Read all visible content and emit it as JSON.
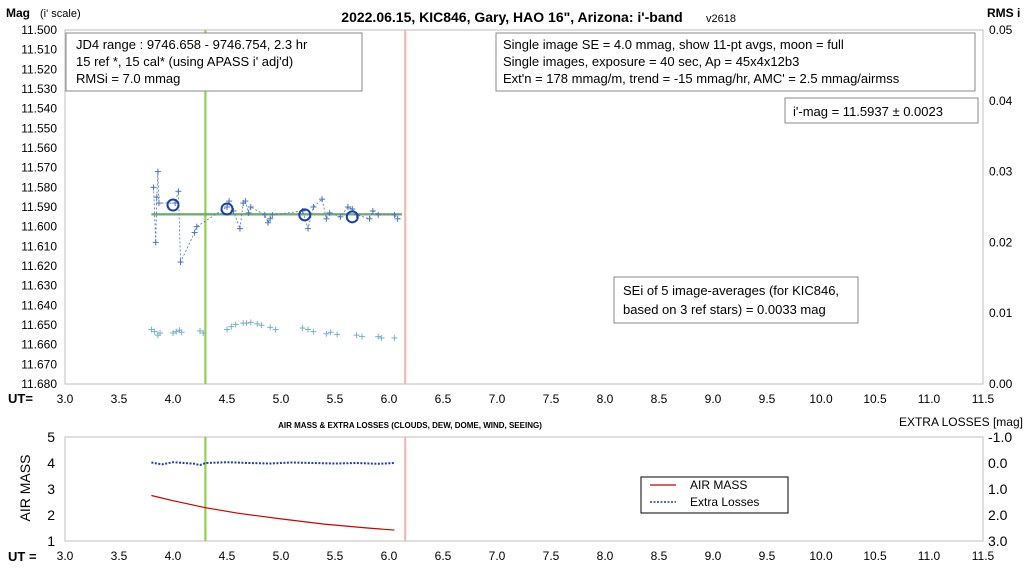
{
  "chart_data": [
    {
      "type": "scatter",
      "title": "2022.06.15, KIC846, Gary, HAO 16\", Arizona: i'-band",
      "version": "v2618",
      "ylabel_left": "Mag",
      "ylabel_left_sub": "(i' scale)",
      "ylabel_right": "RMS i",
      "xlabel": "UT=",
      "xlim": [
        3.0,
        11.5
      ],
      "xticks": [
        "3.0",
        "3.5",
        "4.0",
        "4.5",
        "5.0",
        "5.5",
        "6.0",
        "6.5",
        "7.0",
        "7.5",
        "8.0",
        "8.5",
        "9.0",
        "9.5",
        "10.0",
        "10.5",
        "11.0",
        "11.5"
      ],
      "ylim": [
        11.5,
        11.68
      ],
      "yticks": [
        "11.500",
        "11.510",
        "11.520",
        "11.530",
        "11.540",
        "11.550",
        "11.560",
        "11.570",
        "11.580",
        "11.590",
        "11.600",
        "11.610",
        "11.620",
        "11.630",
        "11.640",
        "11.650",
        "11.660",
        "11.670",
        "11.680"
      ],
      "y2lim": [
        0.0,
        0.05
      ],
      "y2ticks": [
        "0.05",
        "0.04",
        "0.03",
        "0.02",
        "0.01",
        "0.00"
      ],
      "vlines": [
        {
          "x": 4.3,
          "color": "#92d050"
        },
        {
          "x": 6.15,
          "color": "#f4b8b8"
        }
      ],
      "fit_line": {
        "x": [
          3.8,
          6.12
        ],
        "y": 11.5937,
        "color": "#70ad70"
      },
      "series": [
        {
          "marker": "plus",
          "color": "#4a76b8",
          "dashed": true,
          "x": [
            3.82,
            3.84,
            3.85,
            3.86,
            3.87,
            4.02,
            4.05,
            4.07,
            4.2,
            4.22,
            4.5,
            4.52,
            4.56,
            4.62,
            4.65,
            4.67,
            4.7,
            4.72,
            4.85,
            4.88,
            4.9,
            4.92,
            5.2,
            5.25,
            5.3,
            5.38,
            5.42,
            5.45,
            5.55,
            5.62,
            5.66,
            5.7,
            5.82,
            5.85,
            5.9,
            6.05,
            6.08
          ],
          "y": [
            11.58,
            11.608,
            11.585,
            11.572,
            11.588,
            11.588,
            11.582,
            11.618,
            11.603,
            11.6,
            11.59,
            11.587,
            11.592,
            11.601,
            11.588,
            11.587,
            11.593,
            11.59,
            11.594,
            11.598,
            11.596,
            11.594,
            11.592,
            11.601,
            11.59,
            11.586,
            11.596,
            11.593,
            11.595,
            11.59,
            11.591,
            11.594,
            11.596,
            11.592,
            11.594,
            11.594,
            11.596
          ]
        },
        {
          "marker": "circle",
          "color": "#1f3fa8",
          "x": [
            4.0,
            4.5,
            5.22,
            5.66
          ],
          "y": [
            11.589,
            11.591,
            11.594,
            11.595
          ]
        },
        {
          "marker": "plus",
          "color": "#7ab0c8",
          "axis": "right",
          "x": [
            3.8,
            3.83,
            3.86,
            3.88,
            4.0,
            4.03,
            4.06,
            4.08,
            4.25,
            4.28,
            4.5,
            4.54,
            4.58,
            4.65,
            4.68,
            4.72,
            4.78,
            4.82,
            4.9,
            4.95,
            5.2,
            5.25,
            5.3,
            5.42,
            5.46,
            5.52,
            5.7,
            5.75,
            5.9,
            5.93,
            6.05
          ],
          "y": [
            0.0077,
            0.0074,
            0.0069,
            0.0072,
            0.0072,
            0.0074,
            0.0076,
            0.0073,
            0.0075,
            0.0072,
            0.0077,
            0.0081,
            0.0084,
            0.0086,
            0.0086,
            0.0087,
            0.0085,
            0.0083,
            0.008,
            0.0077,
            0.0079,
            0.0077,
            0.0074,
            0.0071,
            0.0073,
            0.007,
            0.0069,
            0.0067,
            0.0067,
            0.0065,
            0.0065
          ]
        }
      ],
      "annotations": {
        "box1": [
          "JD4 range : 9746.658 - 9746.754, 2.3  hr",
          "15 ref *, 15 cal* (using APASS i' adj'd)",
          "RMSi = 7.0 mmag"
        ],
        "box2": [
          "Single image SE = 4.0 mmag, show 11-pt avgs, moon = full",
          "Single images, exposure = 40 sec, Ap = 45x4x12b3",
          "Ext'n = 178 mmag/m, trend = -15 mmag/hr, AMC' = 2.5 mmag/airmss"
        ],
        "box3": "i'-mag = 11.5937 ± 0.0023",
        "box4": [
          "SEi of 5 image-averages (for KIC846,",
          "based on 3 ref stars) = 0.0033 mag"
        ]
      }
    },
    {
      "type": "line",
      "title": "AIR MASS & EXTRA LOSSES (CLOUDS, DEW, DOME, WIND, SEEING)",
      "ylabel_left": "AIR MASS",
      "ylabel_right": "EXTRA LOSSES [mag]",
      "xlabel": "UT =",
      "xlim": [
        3.0,
        11.5
      ],
      "xticks": [
        "3.0",
        "3.5",
        "4.0",
        "4.5",
        "5.0",
        "5.5",
        "6.0",
        "6.5",
        "7.0",
        "7.5",
        "8.0",
        "8.5",
        "9.0",
        "9.5",
        "10.0",
        "10.5",
        "11.0",
        "11.5"
      ],
      "ylim": [
        1,
        5
      ],
      "yticks": [
        "5",
        "4",
        "3",
        "2",
        "1"
      ],
      "y2lim": [
        -1.0,
        3.0
      ],
      "y2ticks": [
        "-1.0",
        "0.0",
        "1.0",
        "2.0",
        "3.0"
      ],
      "vlines": [
        {
          "x": 4.3,
          "color": "#92d050"
        },
        {
          "x": 6.15,
          "color": "#f4b8b8"
        }
      ],
      "series": [
        {
          "name": "AIR MASS",
          "color": "#cc0000",
          "axis": "left",
          "x": [
            3.8,
            4.0,
            4.3,
            4.6,
            5.0,
            5.4,
            5.8,
            6.05
          ],
          "y": [
            2.75,
            2.55,
            2.28,
            2.07,
            1.85,
            1.65,
            1.5,
            1.42
          ]
        },
        {
          "name": "Extra Losses",
          "color": "#1f3fa8",
          "axis": "right",
          "dashed": true,
          "x": [
            3.8,
            3.85,
            3.9,
            4.0,
            4.1,
            4.2,
            4.25,
            4.3,
            4.5,
            4.7,
            4.9,
            5.1,
            5.3,
            5.5,
            5.7,
            5.9,
            6.05
          ],
          "y": [
            -0.02,
            0.02,
            0.05,
            -0.03,
            0.0,
            0.03,
            0.08,
            0.0,
            -0.03,
            0.0,
            0.02,
            -0.02,
            0.0,
            0.02,
            0.0,
            0.03,
            0.0
          ]
        }
      ],
      "legend": {
        "position": "center-right",
        "entries": [
          "AIR MASS",
          "Extra Losses"
        ]
      }
    }
  ]
}
